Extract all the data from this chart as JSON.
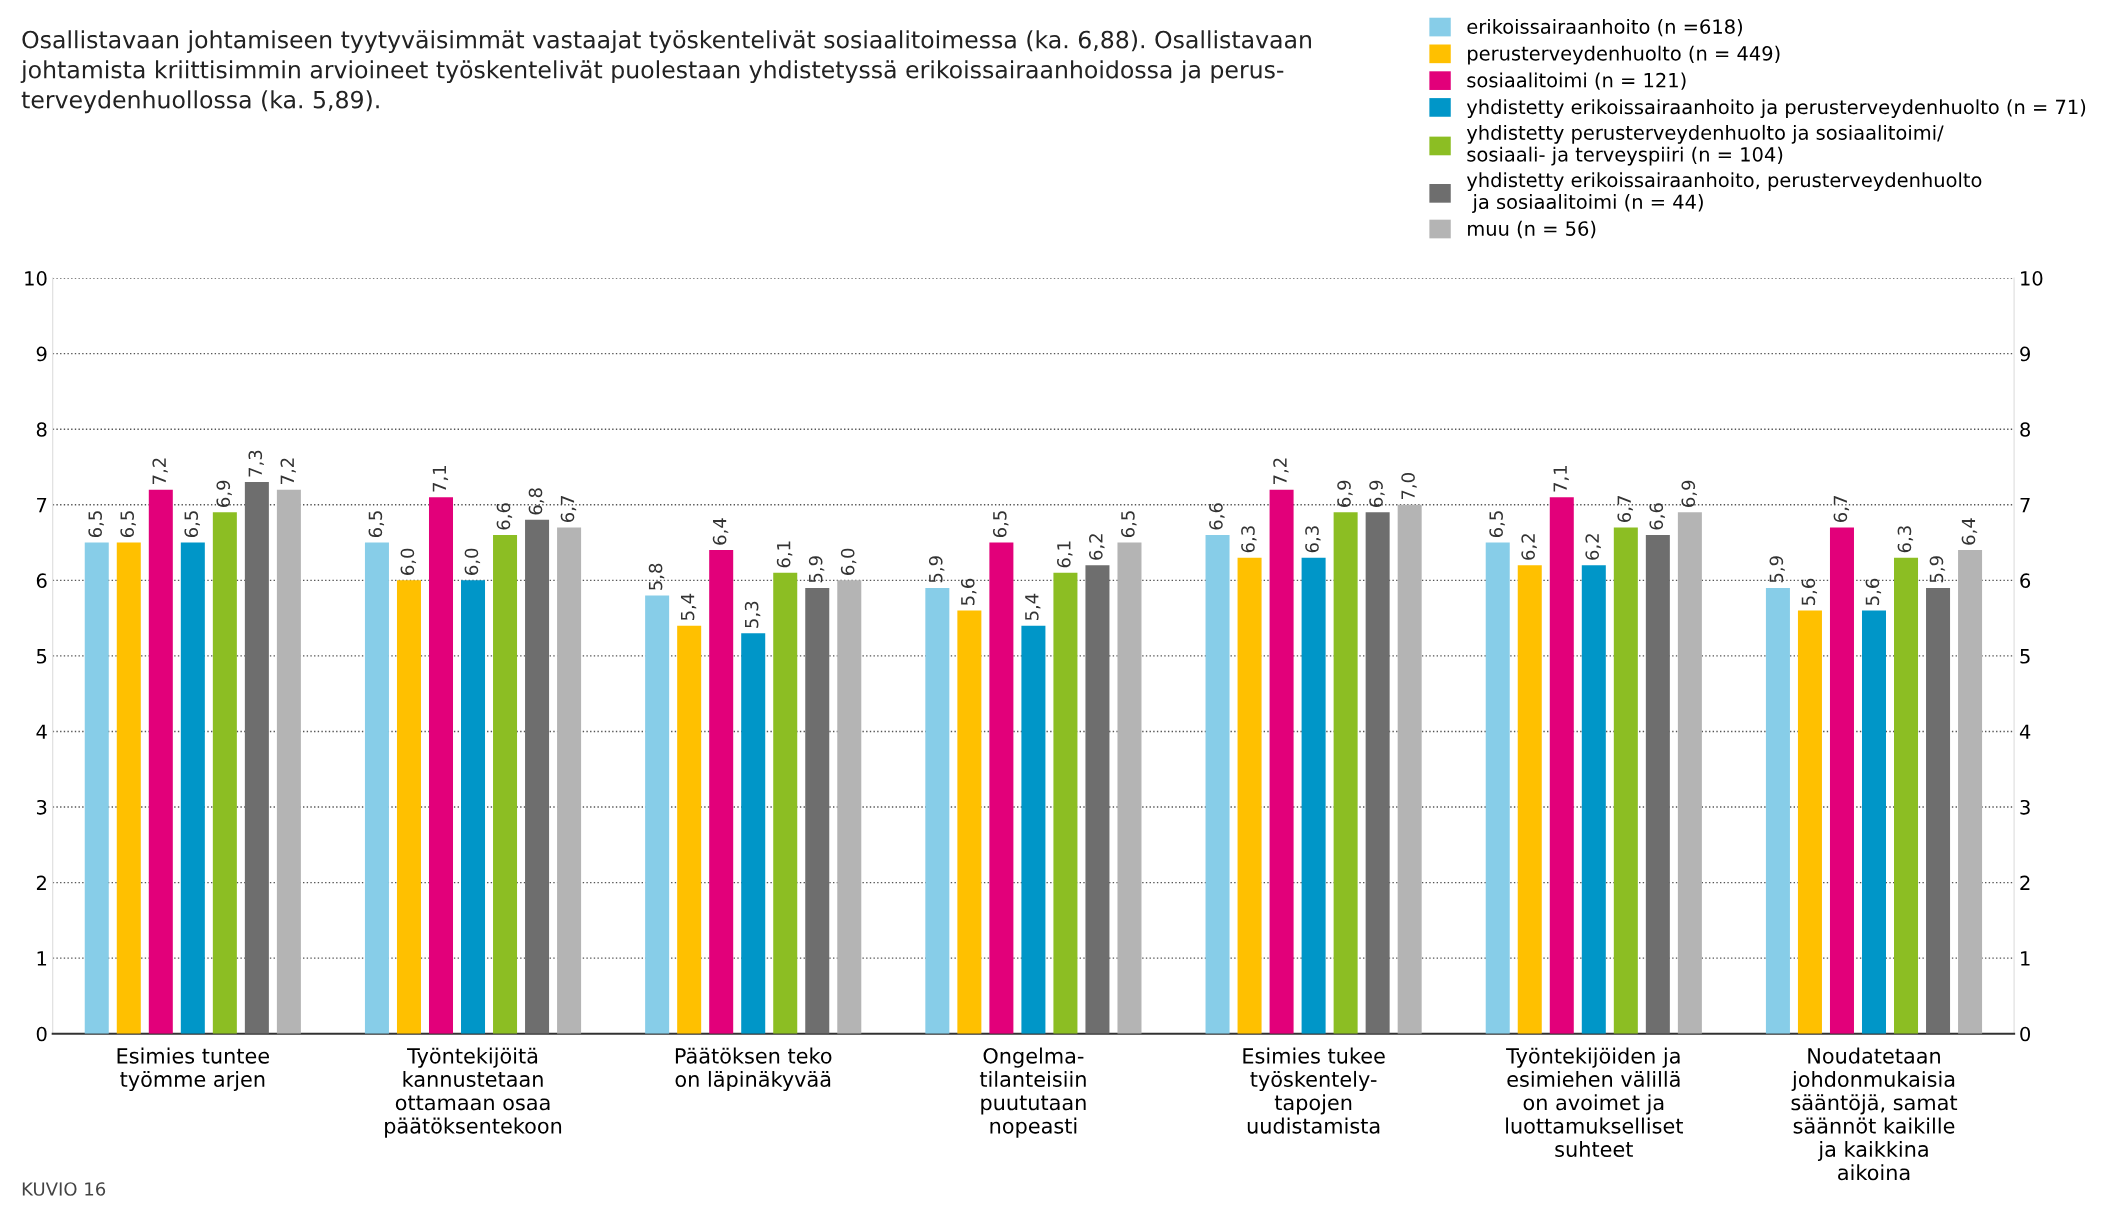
{
  "chart_data": {
    "type": "bar",
    "title": "Osallistavaan johtamiseen tyytyväisimmät vastaajat työskentelivät sosiaalitoimessa (ka. 6,88). Osallistavaan\njohtamista kriittisimmin arvioineet työskentelivät puolestaan yhdistetyssä erikoissairaanhoidossa ja perus-\nterveydenhuollossa (ka. 5,89).",
    "categories": [
      "Esimies tuntee\ntyömme arjen",
      "Työntekijöitä\nkannustetaan\nottamaan osaa\npäätöksentekoon",
      "Päätöksen teko\non läpinäkyvää",
      "Ongelma-\ntilanteisiin\npuututaan\nnopeasti",
      "Esimies tukee\ntyöskentely-\ntapojen\nuudistamista",
      "Työntekijöiden ja\nesimiehen välillä\non avoimet ja\nluottamukselliset\nsuhteet",
      "Noudatetaan\njohdonmukaisia\nsääntöjä, samat\nsäännöt kaikille\nja kaikkina\naikoina"
    ],
    "series": [
      {
        "name": "erikoissairaanhoito (n =618)",
        "color": "#87cde8",
        "values": [
          6.5,
          6.5,
          5.8,
          5.9,
          6.6,
          6.5,
          5.9
        ],
        "value_labels": [
          "6,5",
          "6,5",
          "5,8",
          "5,9",
          "6,6",
          "6,5",
          "5,9"
        ]
      },
      {
        "name": "perusterveydenhuolto (n = 449)",
        "color": "#ffc000",
        "values": [
          6.5,
          6.0,
          5.4,
          5.6,
          6.3,
          6.2,
          5.6
        ],
        "value_labels": [
          "6,5",
          "6,0",
          "5,4",
          "5,6",
          "6,3",
          "6,2",
          "5,6"
        ]
      },
      {
        "name": "sosiaalitoimi (n = 121)",
        "color": "#e2007a",
        "values": [
          7.2,
          7.1,
          6.4,
          6.5,
          7.2,
          7.1,
          6.7
        ],
        "value_labels": [
          "7,2",
          "7,1",
          "6,4",
          "6,5",
          "7,2",
          "7,1",
          "6,7"
        ]
      },
      {
        "name": "yhdistetty erikoissairaanhoito ja perusterveydenhuolto (n = 71)",
        "color": "#0096c8",
        "values": [
          6.5,
          6.0,
          5.3,
          5.4,
          6.3,
          6.2,
          5.6
        ],
        "value_labels": [
          "6,5",
          "6,0",
          "5,3",
          "5,4",
          "6,3",
          "6,2",
          "5,6"
        ]
      },
      {
        "name": "yhdistetty perusterveydenhuolto ja sosiaalitoimi/\nsosiaali- ja terveyspiiri (n = 104)",
        "color": "#8cbe23",
        "values": [
          6.9,
          6.6,
          6.1,
          6.1,
          6.9,
          6.7,
          6.3
        ],
        "value_labels": [
          "6,9",
          "6,6",
          "6,1",
          "6,1",
          "6,9",
          "6,7",
          "6,3"
        ]
      },
      {
        "name": "yhdistetty erikoissairaanhoito, perusterveydenhuolto\n ja sosiaalitoimi (n = 44)",
        "color": "#6e6e6e",
        "values": [
          7.3,
          6.8,
          5.9,
          6.2,
          6.9,
          6.6,
          5.9
        ],
        "value_labels": [
          "7,3",
          "6,8",
          "5,9",
          "6,2",
          "6,9",
          "6,6",
          "5,9"
        ]
      },
      {
        "name": "muu (n = 56)",
        "color": "#b4b4b4",
        "values": [
          7.2,
          6.7,
          6.0,
          6.5,
          7.0,
          6.9,
          6.4
        ],
        "value_labels": [
          "7,2",
          "6,7",
          "6,0",
          "6,5",
          "7,0",
          "6,9",
          "6,4"
        ]
      }
    ],
    "ylim": [
      0,
      10
    ],
    "yticks": [
      0,
      1,
      2,
      3,
      4,
      5,
      6,
      7,
      8,
      9,
      10
    ],
    "y2lim": [
      0,
      10
    ],
    "y2ticks": [
      0,
      1,
      2,
      3,
      4,
      5,
      6,
      7,
      8,
      9,
      10
    ],
    "grid": "y",
    "legend": "top right",
    "annotations": [
      "KUVIO 16"
    ]
  }
}
